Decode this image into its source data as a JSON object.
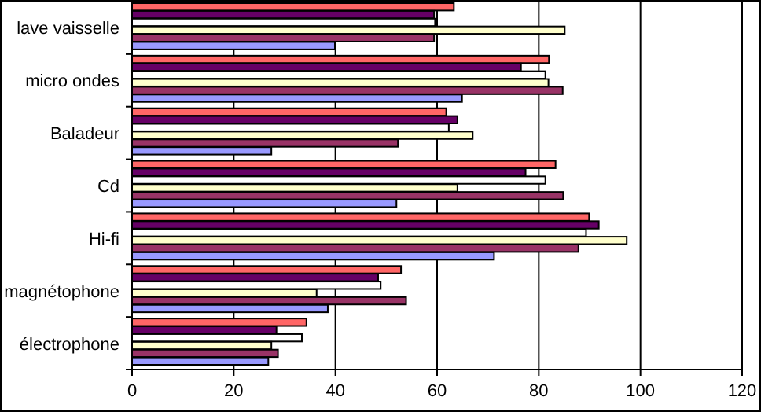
{
  "chart_data": {
    "type": "bar",
    "orientation": "horizontal",
    "categories": [
      "lave vaisselle",
      "micro ondes",
      "Baladeur",
      "Cd",
      "Hi-fi",
      "magnétophone",
      "électrophone"
    ],
    "series": [
      {
        "color": "#ff6666",
        "values": [
          63.3,
          82,
          61.8,
          83.3,
          89.9,
          52.9,
          34.3
        ]
      },
      {
        "color": "#660066",
        "values": [
          59.4,
          76.5,
          64,
          77.4,
          91.8,
          48.4,
          28.4
        ]
      },
      {
        "color": "#ffffff",
        "values": [
          59.6,
          81.3,
          62.3,
          81.3,
          89.3,
          48.9,
          33.4
        ]
      },
      {
        "color": "#ffffcc",
        "values": [
          85.1,
          81.9,
          67,
          64,
          97.3,
          36.3,
          27.4
        ]
      },
      {
        "color": "#993366",
        "values": [
          59.4,
          84.7,
          52.3,
          84.8,
          87.8,
          53.9,
          28.7
        ]
      },
      {
        "color": "#9999ff",
        "values": [
          39.9,
          64.9,
          27.4,
          52,
          71.2,
          38.5,
          26.8
        ]
      }
    ],
    "xlim": [
      0,
      120
    ],
    "xticks": [
      0,
      20,
      40,
      60,
      80,
      100,
      120
    ],
    "grid": "x"
  }
}
